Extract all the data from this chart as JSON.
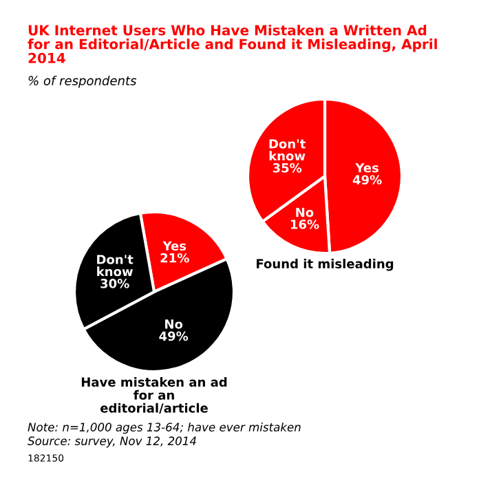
{
  "chart_data": [
    {
      "type": "pie",
      "title": "UK Internet Users Who Have Mistaken a Written Ad for an Editorial/Article and Found it Misleading, April 2014",
      "subtitle": "% of respondents",
      "xlabel": "Have mistaken an ad for an editorial/article",
      "categories": [
        "Yes",
        "No",
        "Don't know"
      ],
      "values": [
        21,
        49,
        30
      ],
      "colors": [
        "#ff0000",
        "#000000",
        "#000000"
      ],
      "value_labels": [
        "21%",
        "49%",
        "30%"
      ],
      "annotations": [
        "Note: n=1,000 ages 13-64; have ever mistaken",
        "Source: survey, Nov 12, 2014",
        "182150"
      ]
    },
    {
      "type": "pie",
      "xlabel": "Found it misleading",
      "categories": [
        "Yes",
        "No",
        "Don't know"
      ],
      "values": [
        49,
        16,
        35
      ],
      "colors": [
        "#ff0000",
        "#ff0000",
        "#ff0000"
      ],
      "value_labels": [
        "49%",
        "16%",
        "35%"
      ]
    }
  ]
}
